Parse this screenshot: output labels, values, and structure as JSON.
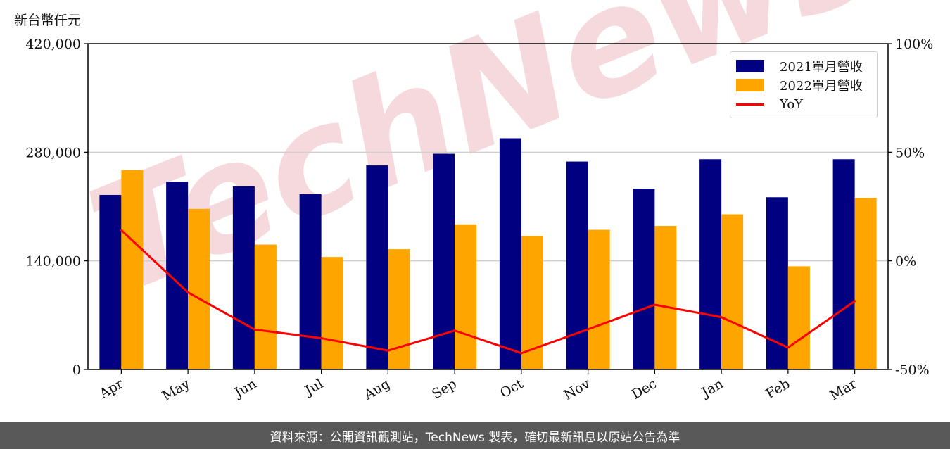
{
  "header": {
    "unit_label": "新台幣仟元"
  },
  "footer": {
    "source_text": "資料來源：公開資訊觀測站，TechNews 製表，確切最新訊息以原站公告為準"
  },
  "watermark": {
    "text": "TechNews",
    "color": "#f6d9dc"
  },
  "chart_data": {
    "type": "bar",
    "categories": [
      "Apr",
      "May",
      "Jun",
      "Jul",
      "Aug",
      "Sep",
      "Oct",
      "Nov",
      "Dec",
      "Jan",
      "Feb",
      "Mar"
    ],
    "series": [
      {
        "name": "2021單月營收",
        "kind": "bar",
        "color": "#000080",
        "values": [
          225000,
          242000,
          236000,
          226000,
          263000,
          278000,
          298000,
          268000,
          233000,
          271000,
          222000,
          271000
        ]
      },
      {
        "name": "2022單月營收",
        "kind": "bar",
        "color": "#ffa500",
        "values": [
          257000,
          207000,
          161000,
          145000,
          155000,
          187000,
          172000,
          180000,
          185000,
          200000,
          133000,
          221000
        ]
      },
      {
        "name": "YoY",
        "kind": "line",
        "axis": "right",
        "color": "#ff0000",
        "values": [
          14.1,
          -14.5,
          -31.6,
          -35.6,
          -41.3,
          -32.1,
          -42.5,
          -31.5,
          -20.2,
          -25.9,
          -39.9,
          -18.5
        ]
      }
    ],
    "y_left": {
      "ylim": [
        0,
        420000
      ],
      "ticks": [
        "0",
        "140,000",
        "280,000",
        "420,000"
      ],
      "tick_values": [
        0,
        140000,
        280000,
        420000
      ]
    },
    "y_right": {
      "ylim": [
        -50,
        100
      ],
      "ticks": [
        "-50%",
        "0%",
        "50%",
        "100%"
      ],
      "tick_values": [
        -50,
        0,
        50,
        100
      ]
    },
    "grid": "horizontal",
    "legend_position": "top-right"
  }
}
